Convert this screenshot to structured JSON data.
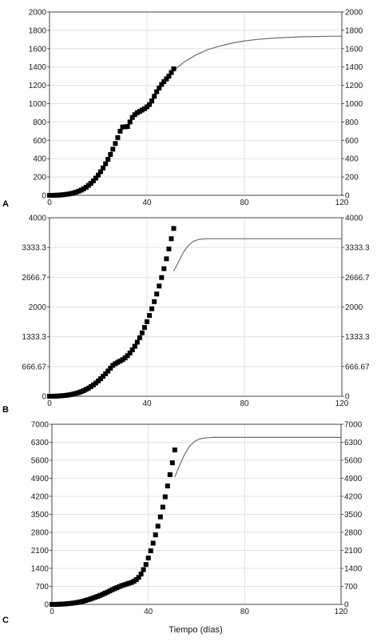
{
  "xlabel": "Tiempo (días)",
  "chart_data": [
    {
      "type": "scatter",
      "panel_label": "A",
      "xlim": [
        0,
        120
      ],
      "ylim": [
        0,
        2000
      ],
      "x_ticks": [
        "0",
        "40",
        "80",
        "120"
      ],
      "y_ticks": [
        "0",
        "200",
        "400",
        "600",
        "800",
        "1000",
        "1200",
        "1400",
        "1600",
        "1800",
        "2000"
      ],
      "grid": true,
      "observed": {
        "x": [
          0,
          1,
          2,
          3,
          4,
          5,
          6,
          7,
          8,
          9,
          10,
          11,
          12,
          13,
          14,
          15,
          16,
          17,
          18,
          19,
          20,
          21,
          22,
          23,
          24,
          25,
          26,
          27,
          28,
          29,
          30,
          31,
          32,
          33,
          34,
          35,
          36,
          37,
          38,
          39,
          40,
          41,
          42,
          43,
          44,
          45,
          46,
          47,
          48,
          49,
          50,
          51
        ],
        "y": [
          0,
          0,
          1,
          2,
          3,
          5,
          8,
          11,
          15,
          20,
          27,
          35,
          45,
          57,
          71,
          88,
          108,
          131,
          158,
          188,
          221,
          258,
          299,
          344,
          393,
          446,
          503,
          565,
          630,
          700,
          745,
          748,
          750,
          800,
          850,
          880,
          900,
          915,
          930,
          945,
          965,
          990,
          1030,
          1080,
          1130,
          1170,
          1210,
          1240,
          1270,
          1300,
          1340,
          1380
        ]
      },
      "fit": {
        "x": [
          50,
          55,
          60,
          65,
          70,
          75,
          80,
          85,
          90,
          95,
          100,
          105,
          110,
          115,
          120
        ],
        "y": [
          1340,
          1450,
          1530,
          1590,
          1630,
          1660,
          1685,
          1700,
          1712,
          1720,
          1726,
          1730,
          1733,
          1735,
          1736
        ]
      }
    },
    {
      "type": "scatter",
      "panel_label": "B",
      "xlim": [
        0,
        120
      ],
      "ylim": [
        0,
        4000
      ],
      "x_ticks": [
        "0",
        "40",
        "80",
        "120"
      ],
      "y_ticks": [
        "0",
        "666.67",
        "1333.3",
        "2000",
        "2666.7",
        "3333.3",
        "4000"
      ],
      "grid": true,
      "observed": {
        "x": [
          0,
          1,
          2,
          3,
          4,
          5,
          6,
          7,
          8,
          9,
          10,
          11,
          12,
          13,
          14,
          15,
          16,
          17,
          18,
          19,
          20,
          21,
          22,
          23,
          24,
          25,
          26,
          27,
          28,
          29,
          30,
          31,
          32,
          33,
          34,
          35,
          36,
          37,
          38,
          39,
          40,
          41,
          42,
          43,
          44,
          45,
          46,
          47,
          48,
          49,
          50,
          51
        ],
        "y": [
          0,
          0,
          2,
          4,
          7,
          11,
          16,
          22,
          30,
          40,
          52,
          66,
          83,
          103,
          126,
          152,
          182,
          216,
          254,
          296,
          342,
          392,
          446,
          504,
          565,
          630,
          690,
          730,
          760,
          790,
          820,
          860,
          910,
          970,
          1040,
          1120,
          1210,
          1310,
          1420,
          1540,
          1670,
          1810,
          1960,
          2120,
          2290,
          2470,
          2660,
          2860,
          3080,
          3300,
          3530,
          3760
        ]
      },
      "fit": {
        "x": [
          51,
          53,
          55,
          57,
          59,
          61,
          63,
          65,
          70,
          80,
          90,
          100,
          110,
          120
        ],
        "y": [
          2800,
          3020,
          3230,
          3380,
          3470,
          3510,
          3525,
          3530,
          3530,
          3530,
          3530,
          3530,
          3530,
          3530
        ]
      }
    },
    {
      "type": "scatter",
      "panel_label": "C",
      "xlim": [
        0,
        120
      ],
      "ylim": [
        0,
        7000
      ],
      "x_ticks": [
        "0",
        "40",
        "80",
        "120"
      ],
      "y_ticks": [
        "0",
        "700",
        "1400",
        "2100",
        "2800",
        "3500",
        "4200",
        "4900",
        "5600",
        "6300",
        "7000"
      ],
      "grid": true,
      "observed": {
        "x": [
          0,
          1,
          2,
          3,
          4,
          5,
          6,
          7,
          8,
          9,
          10,
          11,
          12,
          13,
          14,
          15,
          16,
          17,
          18,
          19,
          20,
          21,
          22,
          23,
          24,
          25,
          26,
          27,
          28,
          29,
          30,
          31,
          32,
          33,
          34,
          35,
          36,
          37,
          38,
          39,
          40,
          41,
          42,
          43,
          44,
          45,
          46,
          47,
          48,
          49,
          50,
          51
        ],
        "y": [
          0,
          0,
          3,
          6,
          10,
          15,
          22,
          30,
          40,
          52,
          66,
          83,
          103,
          126,
          152,
          180,
          210,
          242,
          276,
          312,
          350,
          390,
          432,
          476,
          522,
          570,
          610,
          650,
          690,
          730,
          760,
          790,
          820,
          850,
          900,
          960,
          1050,
          1180,
          1350,
          1550,
          1800,
          2080,
          2380,
          2700,
          3040,
          3400,
          3780,
          4180,
          4600,
          5040,
          5500,
          6000
        ]
      },
      "fit": {
        "x": [
          51,
          53,
          55,
          57,
          59,
          61,
          63,
          65,
          67,
          70,
          80,
          90,
          100,
          110,
          120
        ],
        "y": [
          4950,
          5400,
          5820,
          6130,
          6320,
          6420,
          6460,
          6480,
          6490,
          6490,
          6490,
          6490,
          6490,
          6490,
          6490
        ]
      }
    }
  ]
}
